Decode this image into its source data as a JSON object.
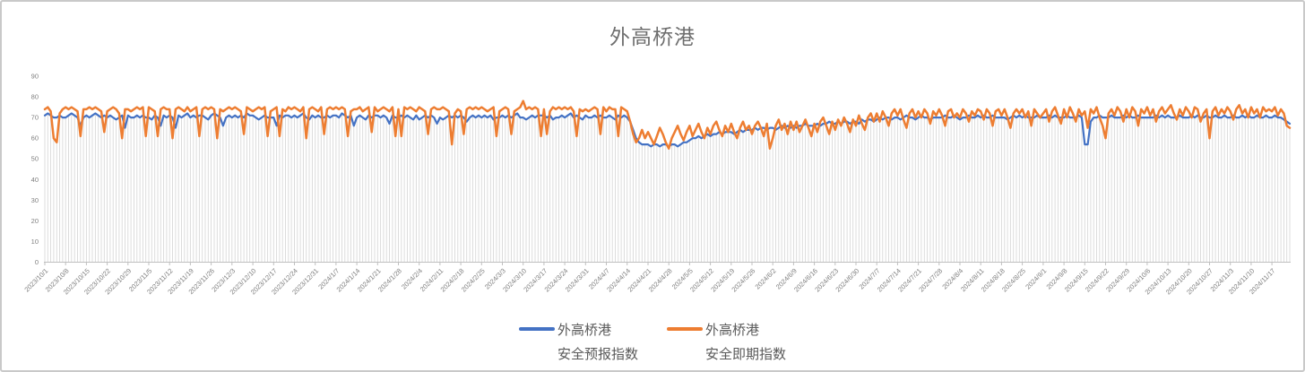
{
  "window": {
    "background": "#ffffff",
    "border_color": "#c9c9c9"
  },
  "chart_data": {
    "type": "line",
    "title": "外高桥港",
    "title_color": "#6e6e6e",
    "xlabel": "",
    "ylabel": "",
    "ylim": [
      0,
      90
    ],
    "y_ticks": [
      0,
      10,
      20,
      30,
      40,
      50,
      60,
      70,
      80,
      90
    ],
    "grid": "vertical droplines per daily point, no horizontal gridlines",
    "legend_position": "bottom-center",
    "axis_label_color": "#7f7f7f",
    "axis_line_color": "#bfbfbf",
    "dropline_color": "#d9d9d9",
    "x_unit": "daily points from 2023/10/1 to 2024/11/23, tick label every 7 days",
    "days_per_tick": 7,
    "x_tick_labels": [
      "2023/10/1",
      "2023/10/8",
      "2023/10/15",
      "2023/10/22",
      "2023/10/29",
      "2023/11/5",
      "2023/11/12",
      "2023/11/19",
      "2023/11/26",
      "2023/12/3",
      "2023/12/10",
      "2023/12/17",
      "2023/12/24",
      "2023/12/31",
      "2024/1/7",
      "2024/1/14",
      "2024/1/21",
      "2024/1/28",
      "2024/2/4",
      "2024/2/11",
      "2024/2/18",
      "2024/2/25",
      "2024/3/3",
      "2024/3/10",
      "2024/3/17",
      "2024/3/24",
      "2024/3/31",
      "2024/4/7",
      "2024/4/14",
      "2024/4/21",
      "2024/4/28",
      "2024/5/5",
      "2024/5/12",
      "2024/5/19",
      "2024/5/26",
      "2024/6/2",
      "2024/6/9",
      "2024/6/16",
      "2024/6/23",
      "2024/6/30",
      "2024/7/7",
      "2024/7/14",
      "2024/7/21",
      "2024/7/28",
      "2024/8/4",
      "2024/8/11",
      "2024/8/18",
      "2024/8/25",
      "2024/9/1",
      "2024/9/8",
      "2024/9/15",
      "2024/9/22",
      "2024/9/29",
      "2024/10/6",
      "2024/10/13",
      "2024/10/20",
      "2024/10/27",
      "2024/11/3",
      "2024/11/10",
      "2024/11/17"
    ],
    "series": [
      {
        "name_line1": "外高桥港",
        "name_line2": "安全预报指数",
        "color": "#4472C4",
        "stroke_width": 2.2,
        "weekly_values": [
          [
            71,
            72,
            71,
            70,
            70,
            71,
            70
          ],
          [
            70,
            71,
            72,
            71,
            70,
            66,
            70
          ],
          [
            71,
            70,
            71,
            72,
            71,
            70,
            71
          ],
          [
            70,
            71,
            70,
            69,
            70,
            71,
            65
          ],
          [
            71,
            70,
            70,
            71,
            70,
            71,
            70
          ],
          [
            70,
            69,
            71,
            70,
            66,
            71,
            70
          ],
          [
            71,
            70,
            65,
            71,
            70,
            71,
            72
          ],
          [
            70,
            71,
            70,
            71,
            71,
            70,
            69
          ],
          [
            71,
            72,
            71,
            70,
            66,
            70,
            71
          ],
          [
            70,
            71,
            70,
            71,
            70,
            72,
            71
          ],
          [
            71,
            70,
            69,
            70,
            71,
            70,
            70
          ],
          [
            70,
            66,
            71,
            70,
            71,
            71,
            70
          ],
          [
            71,
            70,
            71,
            72,
            70,
            69,
            71
          ],
          [
            70,
            71,
            70,
            70,
            71,
            70,
            71
          ],
          [
            71,
            70,
            72,
            71,
            70,
            71,
            66
          ],
          [
            70,
            71,
            70,
            69,
            71,
            70,
            71
          ],
          [
            71,
            70,
            71,
            70,
            67,
            71,
            70
          ],
          [
            70,
            71,
            70,
            71,
            70,
            69,
            71
          ],
          [
            69,
            70,
            71,
            70,
            71,
            70,
            67
          ],
          [
            70,
            69,
            70,
            71,
            70,
            71,
            70
          ],
          [
            71,
            70,
            68,
            70,
            71,
            70,
            71
          ],
          [
            70,
            71,
            70,
            71,
            69,
            70,
            70
          ],
          [
            71,
            70,
            71,
            70,
            71,
            72,
            70
          ],
          [
            70,
            69,
            70,
            71,
            70,
            71,
            71
          ],
          [
            71,
            70,
            71,
            69,
            70,
            70,
            71
          ],
          [
            70,
            71,
            72,
            70,
            71,
            70,
            69
          ],
          [
            71,
            70,
            70,
            71,
            70,
            71,
            70
          ],
          [
            70,
            71,
            70,
            69,
            71,
            70,
            71
          ],
          [
            70,
            68,
            64,
            60,
            58,
            57,
            57
          ],
          [
            57,
            56,
            57,
            57,
            56,
            57,
            57
          ],
          [
            56,
            57,
            57,
            56,
            57,
            58,
            58
          ],
          [
            59,
            60,
            60,
            61,
            60,
            61,
            62
          ],
          [
            61,
            62,
            62,
            63,
            62,
            63,
            63
          ],
          [
            63,
            62,
            63,
            64,
            63,
            64,
            64
          ],
          [
            64,
            65,
            64,
            65,
            65,
            64,
            65
          ],
          [
            65,
            64,
            65,
            66,
            65,
            66,
            65
          ],
          [
            66,
            65,
            66,
            66,
            67,
            66,
            66
          ],
          [
            66,
            67,
            66,
            67,
            67,
            68,
            67
          ],
          [
            67,
            68,
            67,
            68,
            68,
            67,
            68
          ],
          [
            68,
            67,
            69,
            68,
            69,
            69,
            68
          ],
          [
            69,
            70,
            69,
            70,
            70,
            69,
            70
          ],
          [
            70,
            69,
            70,
            71,
            70,
            70,
            69
          ],
          [
            70,
            71,
            70,
            70,
            69,
            70,
            70
          ],
          [
            70,
            70,
            71,
            70,
            70,
            71,
            70
          ],
          [
            69,
            70,
            70,
            71,
            70,
            70,
            71
          ],
          [
            70,
            71,
            70,
            70,
            71,
            70,
            70
          ],
          [
            70,
            70,
            69,
            70,
            71,
            70,
            71
          ],
          [
            70,
            71,
            70,
            70,
            70,
            71,
            70
          ],
          [
            70,
            70,
            71,
            70,
            71,
            70,
            70
          ],
          [
            70,
            71,
            70,
            70,
            70,
            71,
            70
          ],
          [
            57,
            57,
            68,
            70,
            70,
            71,
            70
          ],
          [
            70,
            70,
            71,
            70,
            70,
            70,
            71
          ],
          [
            70,
            71,
            70,
            70,
            71,
            70,
            70
          ],
          [
            70,
            70,
            70,
            71,
            70,
            71,
            70
          ],
          [
            71,
            70,
            70,
            70,
            71,
            70,
            70
          ],
          [
            70,
            71,
            70,
            71,
            70,
            70,
            71
          ],
          [
            70,
            70,
            71,
            70,
            70,
            71,
            70
          ],
          [
            70,
            71,
            70,
            70,
            71,
            70,
            71
          ],
          [
            70,
            70,
            71,
            70,
            70,
            71,
            70
          ],
          [
            70,
            71,
            70,
            70,
            69,
            68,
            67
          ]
        ]
      },
      {
        "name_line1": "外高桥港",
        "name_line2": "安全即期指数",
        "color": "#ED7D31",
        "stroke_width": 2.5,
        "weekly_values": [
          [
            74,
            75,
            73,
            60,
            58,
            72,
            74
          ],
          [
            75,
            74,
            75,
            74,
            73,
            61,
            74
          ],
          [
            74,
            75,
            74,
            75,
            74,
            73,
            63
          ],
          [
            73,
            74,
            75,
            74,
            72,
            60,
            74
          ],
          [
            74,
            73,
            74,
            75,
            74,
            75,
            61
          ],
          [
            75,
            74,
            73,
            61,
            74,
            75,
            74
          ],
          [
            74,
            60,
            74,
            75,
            74,
            73,
            75
          ],
          [
            73,
            74,
            75,
            61,
            74,
            75,
            74
          ],
          [
            75,
            74,
            60,
            74,
            73,
            74,
            75
          ],
          [
            74,
            75,
            74,
            73,
            62,
            75,
            74
          ],
          [
            73,
            74,
            75,
            74,
            75,
            61,
            73
          ],
          [
            74,
            75,
            61,
            74,
            73,
            75,
            74
          ],
          [
            75,
            74,
            73,
            75,
            60,
            74,
            75
          ],
          [
            74,
            73,
            75,
            62,
            74,
            75,
            74
          ],
          [
            75,
            74,
            75,
            74,
            61,
            73,
            74
          ],
          [
            74,
            75,
            73,
            74,
            75,
            63,
            75
          ],
          [
            73,
            74,
            75,
            74,
            73,
            75,
            61
          ],
          [
            74,
            61,
            75,
            74,
            75,
            74,
            73
          ],
          [
            75,
            74,
            73,
            62,
            74,
            75,
            74
          ],
          [
            74,
            75,
            74,
            73,
            57,
            72,
            74
          ],
          [
            73,
            62,
            74,
            75,
            74,
            75,
            74
          ],
          [
            75,
            74,
            73,
            74,
            75,
            61,
            73
          ],
          [
            74,
            75,
            74,
            62,
            73,
            74,
            75
          ],
          [
            78,
            74,
            75,
            74,
            75,
            74,
            61
          ],
          [
            74,
            62,
            73,
            75,
            74,
            75,
            74
          ],
          [
            75,
            74,
            75,
            73,
            61,
            74,
            73
          ],
          [
            74,
            73,
            74,
            75,
            74,
            62,
            75
          ],
          [
            73,
            75,
            74,
            74,
            61,
            75,
            74
          ],
          [
            73,
            68,
            62,
            58,
            60,
            64,
            60
          ],
          [
            63,
            60,
            57,
            61,
            65,
            62,
            58
          ],
          [
            55,
            60,
            63,
            66,
            62,
            59,
            63
          ],
          [
            66,
            61,
            64,
            67,
            63,
            60,
            65
          ],
          [
            62,
            66,
            68,
            64,
            61,
            66,
            63
          ],
          [
            67,
            63,
            60,
            65,
            68,
            64,
            66
          ],
          [
            62,
            66,
            68,
            65,
            61,
            67,
            55
          ],
          [
            60,
            66,
            69,
            64,
            67,
            62,
            68
          ],
          [
            64,
            68,
            63,
            66,
            69,
            65,
            61
          ],
          [
            67,
            63,
            68,
            70,
            66,
            62,
            68
          ],
          [
            64,
            69,
            66,
            70,
            67,
            63,
            69
          ],
          [
            66,
            71,
            67,
            64,
            70,
            72,
            68
          ],
          [
            72,
            68,
            73,
            70,
            66,
            72,
            74
          ],
          [
            71,
            74,
            69,
            65,
            72,
            74,
            70
          ],
          [
            73,
            70,
            74,
            72,
            67,
            73,
            71
          ],
          [
            74,
            71,
            66,
            73,
            74,
            70,
            72
          ],
          [
            70,
            74,
            72,
            68,
            73,
            71,
            74
          ],
          [
            73,
            69,
            74,
            72,
            66,
            73,
            74
          ],
          [
            71,
            74,
            70,
            65,
            72,
            74,
            72
          ],
          [
            74,
            70,
            73,
            66,
            74,
            72,
            70
          ],
          [
            72,
            74,
            68,
            73,
            75,
            71,
            67
          ],
          [
            74,
            70,
            75,
            72,
            68,
            74,
            71
          ],
          [
            73,
            65,
            74,
            72,
            75,
            70,
            66
          ],
          [
            60,
            72,
            74,
            71,
            75,
            73,
            68
          ],
          [
            74,
            70,
            75,
            73,
            66,
            74,
            72
          ],
          [
            75,
            71,
            74,
            68,
            73,
            75,
            72
          ],
          [
            74,
            76,
            72,
            69,
            74,
            71,
            75
          ],
          [
            73,
            70,
            75,
            74,
            68,
            72,
            74
          ],
          [
            60,
            73,
            75,
            71,
            74,
            72,
            75
          ],
          [
            73,
            69,
            74,
            76,
            72,
            74,
            70
          ],
          [
            75,
            72,
            74,
            70,
            75,
            73,
            74
          ],
          [
            73,
            75,
            71,
            74,
            72,
            66,
            65
          ]
        ]
      }
    ]
  },
  "legend": {
    "items": [
      {
        "line1": "外高桥港",
        "line2": "安全预报指数"
      },
      {
        "line1": "外高桥港",
        "line2": "安全即期指数"
      }
    ]
  }
}
